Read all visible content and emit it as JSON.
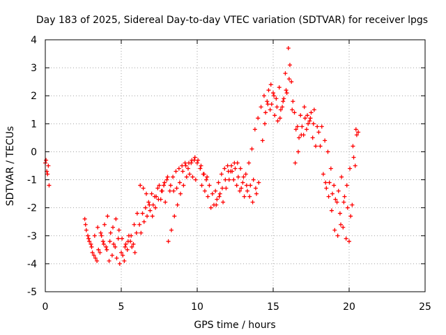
{
  "chart_data": {
    "type": "scatter",
    "title": "Day 183 of 2025, Sidereal Day-to-day VTEC variation (SDTVAR) for receiver lpgs",
    "xlabel": "GPS time / hours",
    "ylabel": "SDTVAR / TECUs",
    "xlim": [
      0,
      25
    ],
    "ylim": [
      -5,
      4
    ],
    "xticks": [
      "0",
      "5",
      "10",
      "15",
      "20",
      "25"
    ],
    "yticks": [
      "-5",
      "-4",
      "-3",
      "-2",
      "-1",
      "0",
      "1",
      "2",
      "3",
      "4"
    ],
    "grid": true,
    "legend": "none",
    "marker": "+",
    "color": "#ff0000",
    "series": [
      {
        "x": [
          0.0,
          0.05,
          0.1,
          0.15,
          0.2,
          0.25,
          2.6,
          2.8,
          3.0,
          3.2,
          3.4,
          3.6,
          3.8,
          4.0,
          4.2,
          4.4,
          4.6,
          4.8,
          5.0,
          5.2,
          5.4,
          5.6,
          5.8,
          6.0,
          6.2,
          6.4,
          6.6,
          6.8,
          7.0,
          7.2,
          7.4,
          7.6,
          7.8,
          8.0,
          8.2,
          8.4,
          8.6,
          8.8,
          9.0,
          9.2,
          9.4,
          9.6,
          9.8,
          10.0,
          10.2,
          10.4,
          10.6,
          10.8,
          11.0,
          11.2,
          11.4,
          11.6,
          11.8,
          12.0,
          12.2,
          12.4,
          12.6,
          12.8,
          13.0,
          13.2,
          13.4,
          13.6,
          13.8,
          14.0,
          14.2,
          14.4,
          14.6,
          14.8,
          15.0,
          15.2,
          15.4,
          15.6,
          15.8,
          16.0,
          16.2,
          16.4,
          16.6,
          16.8,
          17.0,
          17.2,
          17.4,
          17.6,
          17.8,
          18.0,
          18.2,
          18.4,
          18.6,
          18.8,
          19.0,
          19.2,
          19.4,
          19.6,
          19.8,
          20.0,
          20.2,
          20.4,
          20.6
        ],
        "y": [
          -0.4,
          -0.3,
          -0.7,
          -0.8,
          -0.5,
          -1.2,
          -2.4,
          -3.0,
          -3.3,
          -3.7,
          -3.9,
          -3.6,
          -3.2,
          -3.4,
          -3.9,
          -3.7,
          -3.4,
          -3.1,
          -3.6,
          -3.9,
          -3.5,
          -3.2,
          -3.3,
          -2.9,
          -2.6,
          -2.2,
          -2.0,
          -1.8,
          -1.5,
          -1.6,
          -1.3,
          -1.7,
          -1.2,
          -1.0,
          -1.4,
          -0.9,
          -0.7,
          -0.6,
          -0.5,
          -0.4,
          -0.6,
          -0.4,
          -0.3,
          -0.4,
          -0.6,
          -0.8,
          -1.0,
          -1.2,
          -1.5,
          -1.4,
          -1.1,
          -0.8,
          -0.6,
          -0.5,
          -0.7,
          -1.0,
          -1.2,
          -1.4,
          -1.1,
          -0.8,
          -0.4,
          0.1,
          0.8,
          1.2,
          1.6,
          2.0,
          1.8,
          1.5,
          2.1,
          1.9,
          2.3,
          1.6,
          2.8,
          3.7,
          2.5,
          1.4,
          0.9,
          1.3,
          0.6,
          0.8,
          1.1,
          0.5,
          0.2,
          0.7,
          0.9,
          0.4,
          0.0,
          -0.6,
          -1.2,
          -1.8,
          -2.2,
          -2.7,
          -3.1,
          -3.2,
          -1.9,
          -0.5,
          0.7
        ]
      },
      {
        "x": [
          2.7,
          2.9,
          3.1,
          3.3,
          3.5,
          3.7,
          3.9,
          4.1,
          4.3,
          4.5,
          4.7,
          4.9,
          5.1,
          5.3,
          5.5,
          5.7,
          5.9,
          6.3,
          6.5,
          6.7,
          6.9,
          7.1,
          7.3,
          7.5,
          7.7,
          7.9,
          8.1,
          8.3,
          8.5,
          8.7,
          8.9,
          9.1,
          9.3,
          9.5,
          9.7,
          9.9,
          10.3,
          10.5,
          10.7,
          10.9,
          11.1,
          11.3,
          11.5,
          11.7,
          11.9,
          12.1,
          12.3,
          12.5,
          12.7,
          12.9,
          13.1,
          13.3,
          13.5,
          13.7,
          13.9,
          14.3,
          14.5,
          14.7,
          14.9,
          15.1,
          15.3,
          15.5,
          15.7,
          15.9,
          16.1,
          16.3,
          16.5,
          16.7,
          16.9,
          17.1,
          17.3,
          17.5,
          17.7,
          17.9,
          18.1,
          18.3,
          18.5,
          18.7,
          18.9,
          19.1,
          19.3,
          19.5,
          19.7,
          19.9,
          20.1,
          20.3,
          20.5
        ],
        "y": [
          -2.8,
          -3.2,
          -3.6,
          -3.8,
          -3.5,
          -3.0,
          -2.6,
          -2.3,
          -2.9,
          -3.3,
          -3.8,
          -4.0,
          -3.7,
          -3.3,
          -3.0,
          -3.4,
          -3.6,
          -2.9,
          -2.5,
          -2.3,
          -2.1,
          -1.9,
          -1.6,
          -1.2,
          -1.4,
          -1.8,
          -3.2,
          -2.8,
          -2.3,
          -1.9,
          -1.5,
          -1.2,
          -0.9,
          -0.8,
          -0.9,
          -1.0,
          -1.2,
          -1.4,
          -1.6,
          -2.0,
          -1.9,
          -1.7,
          -1.5,
          -1.8,
          -1.3,
          -1.0,
          -0.7,
          -0.6,
          -0.9,
          -1.3,
          -1.6,
          -1.4,
          -1.2,
          -1.0,
          -1.5,
          0.4,
          1.4,
          2.2,
          1.7,
          1.3,
          1.1,
          1.5,
          1.9,
          2.1,
          3.1,
          1.8,
          0.8,
          0.5,
          0.9,
          1.2,
          1.0,
          1.4,
          1.5,
          0.9,
          0.2,
          -0.8,
          -1.3,
          -1.1,
          -1.5,
          -1.7,
          -1.4,
          -0.9,
          -1.6,
          -2.0,
          -2.3,
          -0.2,
          0.6
        ]
      },
      {
        "x": [
          2.65,
          2.85,
          3.05,
          3.25,
          3.45,
          3.65,
          3.85,
          4.05,
          4.25,
          4.45,
          4.65,
          4.85,
          5.05,
          5.25,
          5.45,
          5.65,
          5.85,
          6.05,
          6.25,
          6.45,
          6.65,
          6.85,
          7.05,
          7.25,
          7.45,
          7.65,
          7.85,
          8.05,
          8.25,
          8.45,
          8.65,
          8.85,
          9.05,
          9.25,
          9.45,
          9.65,
          9.85,
          10.05,
          10.25,
          10.45,
          10.65,
          11.25,
          11.45,
          11.65,
          11.85,
          12.05,
          12.25,
          12.45,
          12.65,
          12.85,
          13.05,
          13.25,
          13.45,
          13.65,
          13.85,
          14.05,
          14.45,
          14.65,
          14.85,
          15.05,
          15.25,
          15.45,
          15.65,
          15.85,
          16.05,
          16.25,
          16.45,
          16.65,
          16.85,
          17.05,
          17.25,
          17.45,
          17.65,
          18.45,
          18.65,
          18.85,
          19.05,
          19.25,
          19.45,
          19.65,
          19.85,
          20.05,
          20.25,
          20.45
        ],
        "y": [
          -2.6,
          -3.1,
          -3.4,
          -3.0,
          -2.7,
          -2.9,
          -3.3,
          -3.5,
          -3.2,
          -2.7,
          -2.4,
          -2.8,
          -3.1,
          -3.4,
          -3.2,
          -3.0,
          -2.6,
          -2.2,
          -1.2,
          -1.3,
          -1.5,
          -1.9,
          -2.3,
          -2.0,
          -1.7,
          -1.4,
          -1.1,
          -0.9,
          -1.2,
          -1.4,
          -1.3,
          -1.1,
          -0.7,
          -0.5,
          -0.4,
          -0.3,
          -0.2,
          -0.3,
          -0.5,
          -0.8,
          -0.9,
          -1.9,
          -1.6,
          -1.3,
          -1.0,
          -0.7,
          -0.5,
          -0.4,
          -0.4,
          -0.6,
          -0.9,
          -1.2,
          -1.6,
          -1.8,
          -1.3,
          -1.1,
          1.0,
          1.7,
          2.4,
          2.0,
          1.6,
          1.2,
          1.8,
          2.2,
          2.6,
          1.5,
          -0.4,
          0.0,
          0.6,
          1.6,
          1.3,
          1.2,
          1.0,
          -1.1,
          -1.6,
          -2.1,
          -2.8,
          -3.0,
          -2.6,
          -1.8,
          -1.2,
          -0.6,
          0.2,
          0.8
        ]
      }
    ]
  }
}
